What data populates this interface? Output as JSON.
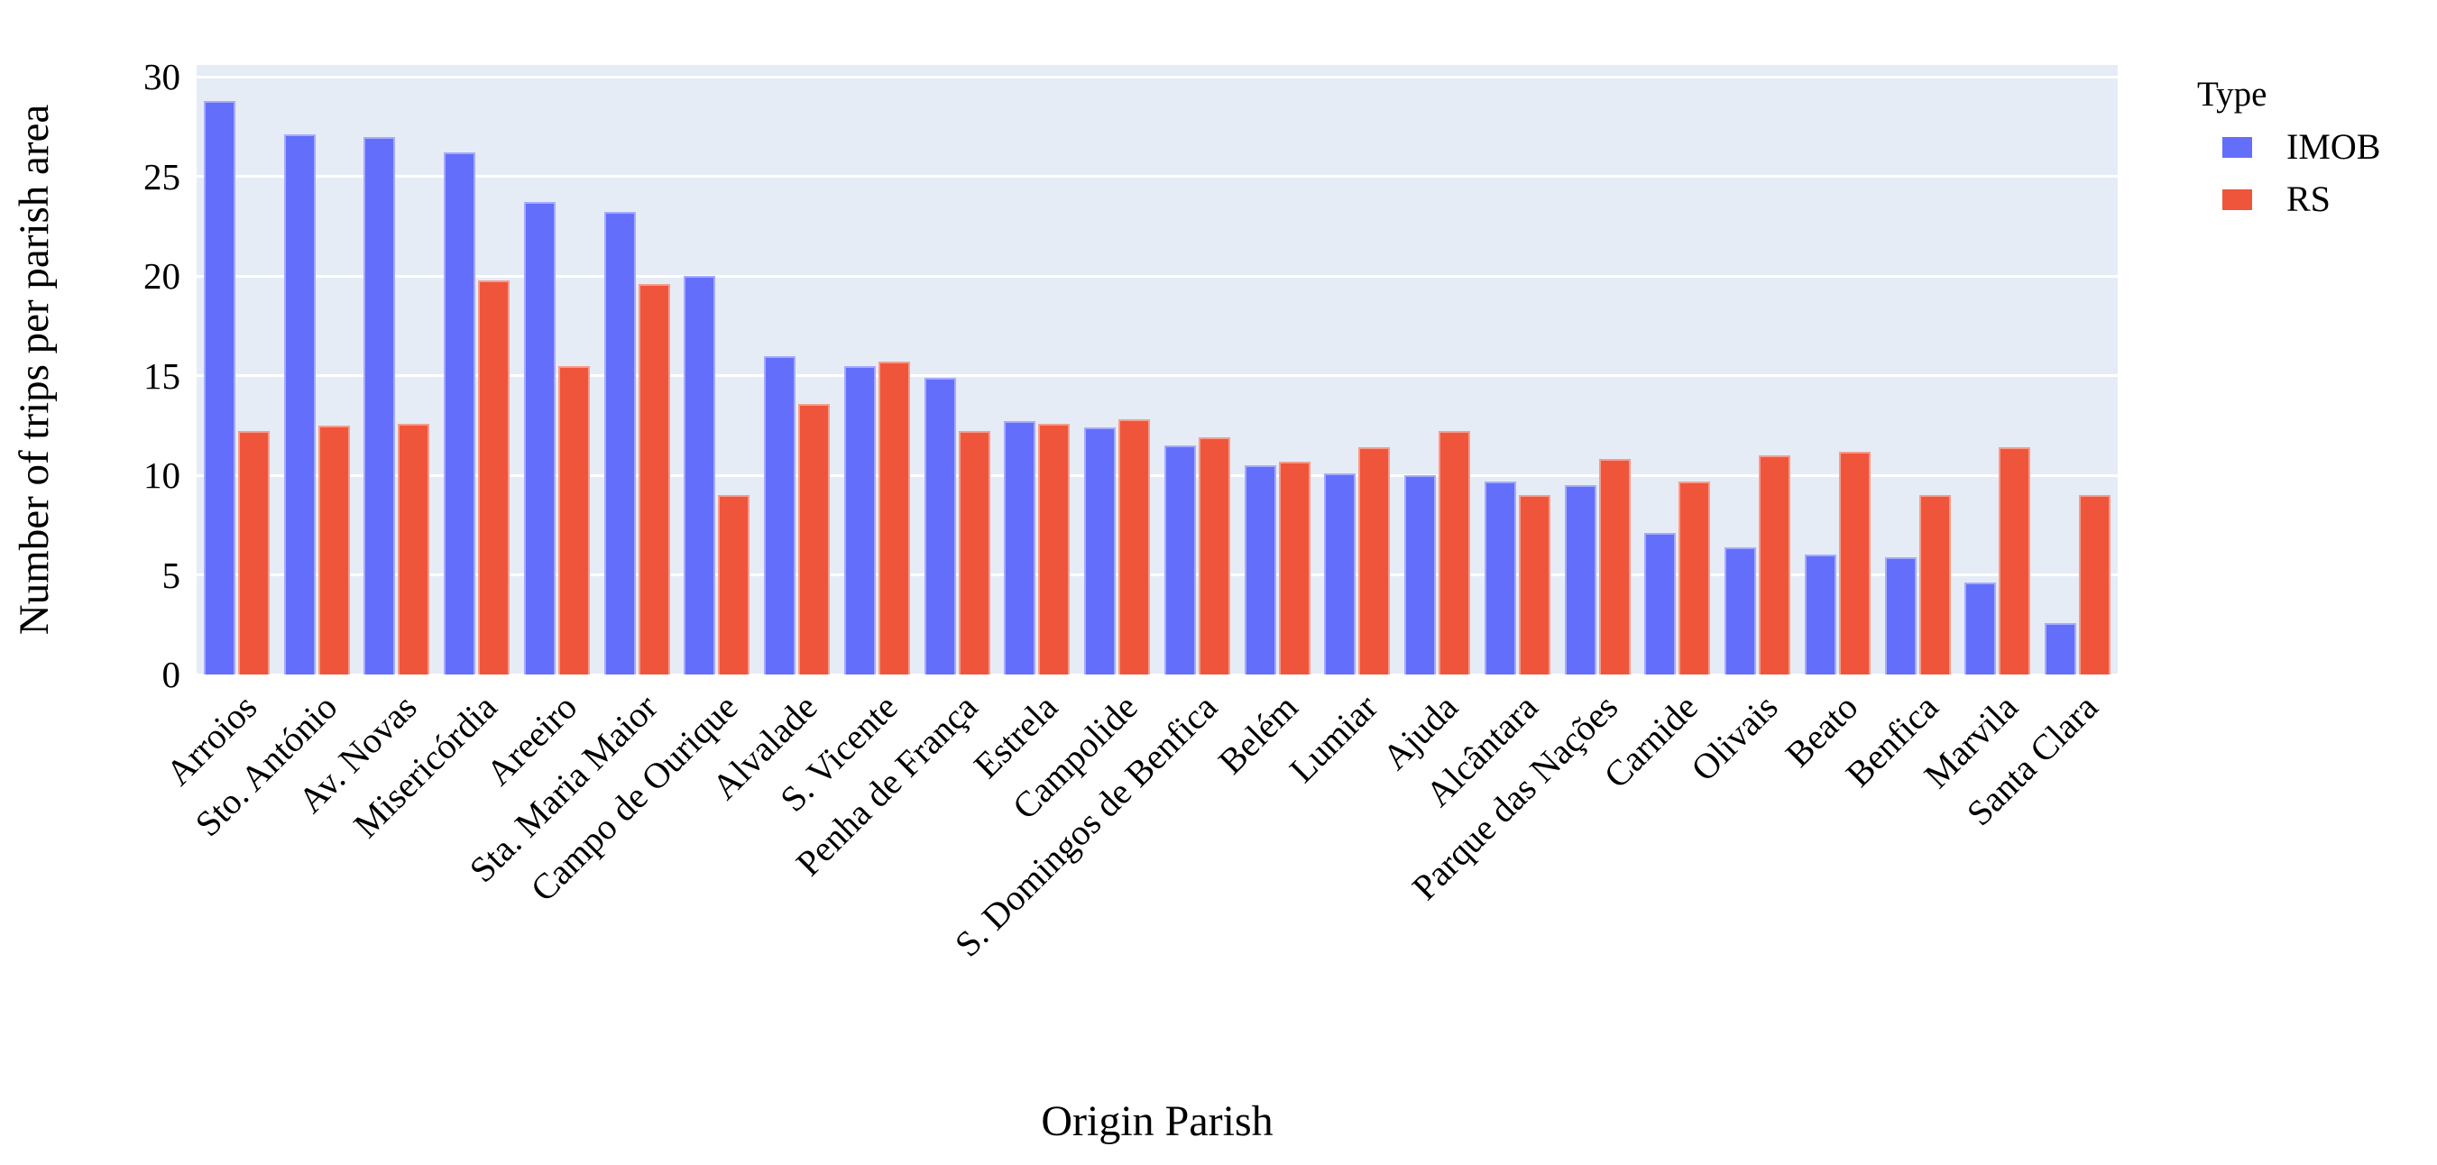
{
  "chart_data": {
    "type": "bar",
    "title": "",
    "xlabel": "Origin Parish",
    "ylabel": "Number of trips per parish area",
    "categories": [
      "Arroios",
      "Sto. António",
      "Av. Novas",
      "Misericórdia",
      "Areeiro",
      "Sta. Maria Maior",
      "Campo de Ourique",
      "Alvalade",
      "S. Vicente",
      "Penha de França",
      "Estrela",
      "Campolide",
      "S. Domingos de Benfica",
      "Belém",
      "Lumiar",
      "Ajuda",
      "Alcântara",
      "Parque das Nações",
      "Carnide",
      "Olivais",
      "Beato",
      "Benfica",
      "Marvila",
      "Santa Clara"
    ],
    "series": [
      {
        "name": "IMOB",
        "color": "#636EFA",
        "values": [
          28.8,
          27.1,
          27.0,
          26.2,
          23.7,
          23.2,
          20.0,
          16.0,
          15.5,
          14.9,
          12.7,
          12.4,
          11.5,
          10.5,
          10.1,
          10.0,
          9.7,
          9.5,
          7.1,
          6.4,
          6.0,
          5.9,
          4.6,
          2.6
        ]
      },
      {
        "name": "RS",
        "color": "#EF553B",
        "values": [
          12.2,
          12.5,
          12.6,
          19.8,
          15.5,
          19.6,
          9.0,
          13.6,
          15.7,
          12.2,
          12.6,
          12.8,
          11.9,
          10.7,
          11.4,
          12.2,
          9.0,
          10.8,
          9.7,
          11.0,
          11.2,
          9.0,
          11.4,
          9.0
        ]
      }
    ],
    "ylim": [
      0,
      30.6
    ],
    "yticks": [
      0,
      5,
      10,
      15,
      20,
      25,
      30
    ],
    "grid": true,
    "legend_title": "Type",
    "legend_position": "right",
    "plot_bg": "#E5ECF6",
    "gridline_color": "#FFFFFF",
    "text_color": "#000000"
  }
}
